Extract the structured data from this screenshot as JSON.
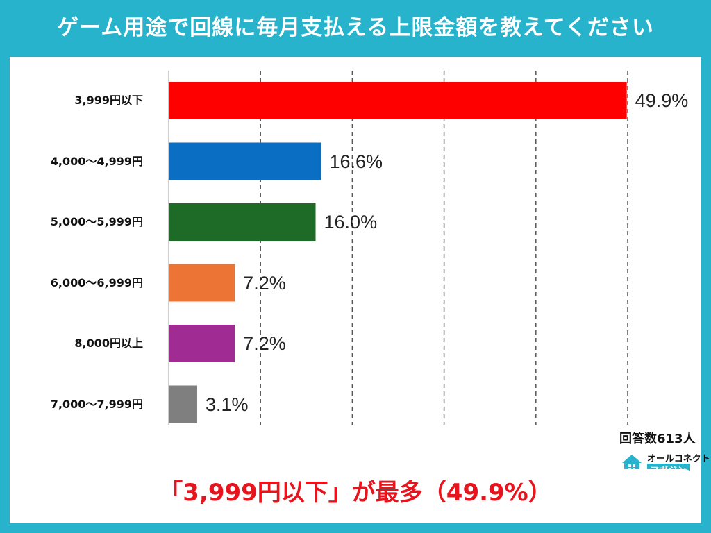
{
  "title": "ゲーム用途で回線に毎月支払える上限金額を教えてください",
  "chart_data": {
    "type": "bar",
    "orientation": "horizontal",
    "categories": [
      "3,999円以下",
      "4,000〜4,999円",
      "5,000〜5,999円",
      "6,000〜6,999円",
      "8,000円以上",
      "7,000〜7,999円"
    ],
    "values": [
      49.9,
      16.6,
      16.0,
      7.2,
      7.2,
      3.1
    ],
    "value_labels": [
      "49.9%",
      "16.6%",
      "16.0%",
      "7.2%",
      "7.2%",
      "3.1%"
    ],
    "colors": [
      "#fe0000",
      "#0a6fc2",
      "#1e6b28",
      "#ec7434",
      "#a02b92",
      "#7f7f7f"
    ],
    "xlim": [
      0,
      50
    ],
    "x_ticks": [
      "0%",
      "10%",
      "20%",
      "30%",
      "40%",
      "50%"
    ],
    "grid": "vertical dashed",
    "unit": "%"
  },
  "respondents": "回答数613人",
  "logo": {
    "top": "オールコネクト",
    "bottom": "マガジン"
  },
  "summary": "「3,999円以下」が最多（49.9%）",
  "colors": {
    "frame": "#27b3cc",
    "summary_text": "#e8141d"
  }
}
